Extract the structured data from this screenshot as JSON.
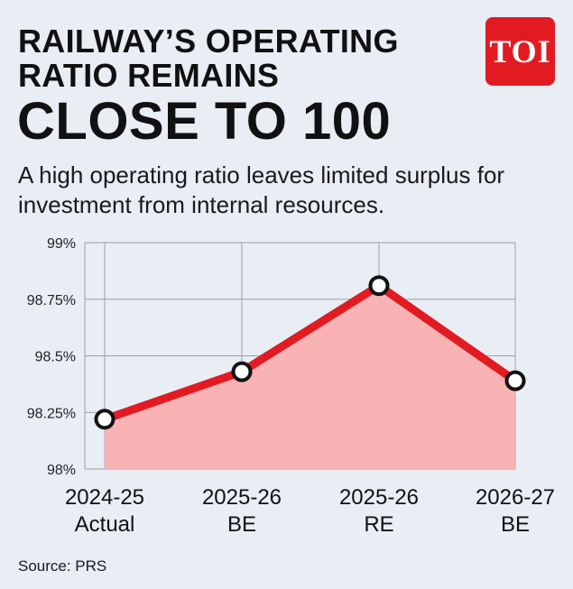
{
  "header": {
    "title_line1": "RAILWAY’S OPERATING",
    "title_line2": "RATIO REMAINS",
    "title_line3": "CLOSE TO 100",
    "subtitle": "A high operating ratio leaves limited surplus for investment from internal resources.",
    "logo_text": "TOI"
  },
  "footer": {
    "source": "Source: PRS"
  },
  "chart_data": {
    "type": "area",
    "title": "RAILWAY’S OPERATING RATIO REMAINS CLOSE TO 100",
    "subtitle": "A high operating ratio leaves limited surplus for investment from internal resources.",
    "categories": [
      [
        "2024-25",
        "Actual"
      ],
      [
        "2025-26",
        "BE"
      ],
      [
        "2025-26",
        "RE"
      ],
      [
        "2026-27",
        "BE"
      ]
    ],
    "values": [
      98.22,
      98.43,
      98.81,
      98.39
    ],
    "ylim": [
      98,
      99
    ],
    "yticks": [
      98,
      98.25,
      98.5,
      98.75,
      99
    ],
    "ytick_labels": [
      "98%",
      "98.25%",
      "98.5%",
      "98.75%",
      "99%"
    ],
    "xlabel": "",
    "ylabel": "",
    "grid": true,
    "legend": "none",
    "colors": {
      "line": "#e21b23",
      "fill": "#f9b3b5",
      "marker_fill": "#ffffff",
      "marker_stroke": "#111111",
      "plot_bg": "#e9edf4",
      "grid": "#9aa0a8"
    }
  }
}
